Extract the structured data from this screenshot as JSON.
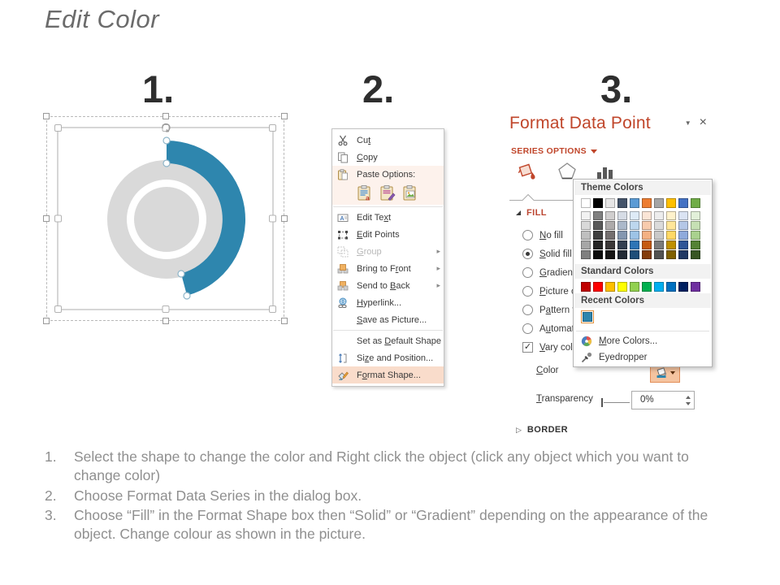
{
  "title": "Edit Color",
  "step_numbers": {
    "one": "1.",
    "two": "2.",
    "three": "3."
  },
  "colors": {
    "accent_blue": "#2e86ae",
    "donut_gray": "#d9d9d9",
    "panel_red": "#c0462b",
    "highlight_salmon": "#f9dccb",
    "button_salmon": "#f5c4a0"
  },
  "context_menu": {
    "items": [
      {
        "label": "Cut",
        "accel": 2
      },
      {
        "label": "Copy",
        "accel": 0
      },
      {
        "label": "Paste Options:"
      },
      {
        "label": "Edit Text",
        "accel": 7
      },
      {
        "label": "Edit Points",
        "accel": 0
      },
      {
        "label": "Group",
        "accel": 0,
        "disabled": true,
        "submenu": true
      },
      {
        "label": "Bring to Front",
        "accel": 10,
        "submenu": true
      },
      {
        "label": "Send to Back",
        "accel": 8,
        "submenu": true
      },
      {
        "label": "Hyperlink...",
        "accel": 0
      },
      {
        "label": "Save as Picture...",
        "accel": 0
      },
      {
        "label": "Set as Default Shape",
        "accel": 7
      },
      {
        "label": "Size and Position...",
        "accel": 2
      },
      {
        "label": "Format Shape...",
        "accel": 1,
        "highlighted": true
      }
    ],
    "submenu_arrow": "▸"
  },
  "format_panel": {
    "title": "Format Data Point",
    "chevron": "▼",
    "close": "×",
    "series_options": "SERIES OPTIONS",
    "fill_header": "FILL",
    "border_header": "BORDER",
    "border_collapse_glyph": "▷",
    "fill_options": [
      {
        "label": "No fill",
        "accel": 0,
        "selected": false
      },
      {
        "label": "Solid fill",
        "accel": 0,
        "selected": true
      },
      {
        "label": "Gradient fill",
        "accel": 0,
        "selected": false
      },
      {
        "label": "Picture or texture fill",
        "accel": 0,
        "selected": false
      },
      {
        "label": "Pattern fill",
        "accel": 1,
        "selected": false
      },
      {
        "label": "Automatic",
        "accel": 1,
        "selected": false
      }
    ],
    "vary_colors": {
      "label": "Vary colors by point",
      "accel": 0,
      "checked": true,
      "checkmark": "✓"
    },
    "color_label": "Color",
    "color_accel": 0,
    "transparency_label": "Transparency",
    "transparency_accel": 0,
    "transparency_value": "0%"
  },
  "color_picker": {
    "theme_header": "Theme Colors",
    "standard_header": "Standard Colors",
    "recent_header": "Recent Colors",
    "more_colors_label": "More Colors...",
    "more_colors_accel": 0,
    "eyedropper_label": "Eyedropper",
    "theme_colors": [
      "#FFFFFF",
      "#000000",
      "#E7E6E6",
      "#44546A",
      "#5B9BD5",
      "#ED7D31",
      "#A5A5A5",
      "#FFC000",
      "#4472C4",
      "#70AD47"
    ],
    "theme_variants": [
      [
        "#F2F2F2",
        "#D9D9D9",
        "#BFBFBF",
        "#A6A6A6",
        "#808080"
      ],
      [
        "#7F7F7F",
        "#595959",
        "#404040",
        "#262626",
        "#0D0D0D"
      ],
      [
        "#D0CECE",
        "#AEABAB",
        "#757070",
        "#3B3838",
        "#171616"
      ],
      [
        "#D6DCE5",
        "#ACB9CA",
        "#8497B0",
        "#333F50",
        "#222A35"
      ],
      [
        "#DEEBF7",
        "#BDD7EE",
        "#9DC3E6",
        "#2E75B6",
        "#1F4E79"
      ],
      [
        "#FBE5D6",
        "#F8CBAD",
        "#F4B183",
        "#C55A11",
        "#843C0C"
      ],
      [
        "#EDEDED",
        "#DBDBDB",
        "#C9C9C9",
        "#7B7B7B",
        "#525252"
      ],
      [
        "#FFF2CC",
        "#FFE699",
        "#FFD966",
        "#BF9000",
        "#7F6000"
      ],
      [
        "#DAE3F3",
        "#B4C7E7",
        "#8FAADC",
        "#2F5597",
        "#203864"
      ],
      [
        "#E2F0D9",
        "#C6E0B4",
        "#A9D18E",
        "#548235",
        "#375623"
      ]
    ],
    "standard_colors": [
      "#C00000",
      "#FF0000",
      "#FFC000",
      "#FFFF00",
      "#92D050",
      "#00B050",
      "#00B0F0",
      "#0070C0",
      "#002060",
      "#7030A0"
    ],
    "recent_colors": [
      "#2E86AE"
    ]
  },
  "instructions": [
    {
      "num": "1.",
      "text": "Select the shape to change the color and Right click the object (click any object which you want to change color)"
    },
    {
      "num": "2.",
      "text": "Choose Format Data Series in the dialog box."
    },
    {
      "num": "3.",
      "text": "Choose “Fill” in the Format Shape box then  “Solid” or “Gradient” depending on the appearance of the object. Change colour as shown in the picture."
    }
  ]
}
